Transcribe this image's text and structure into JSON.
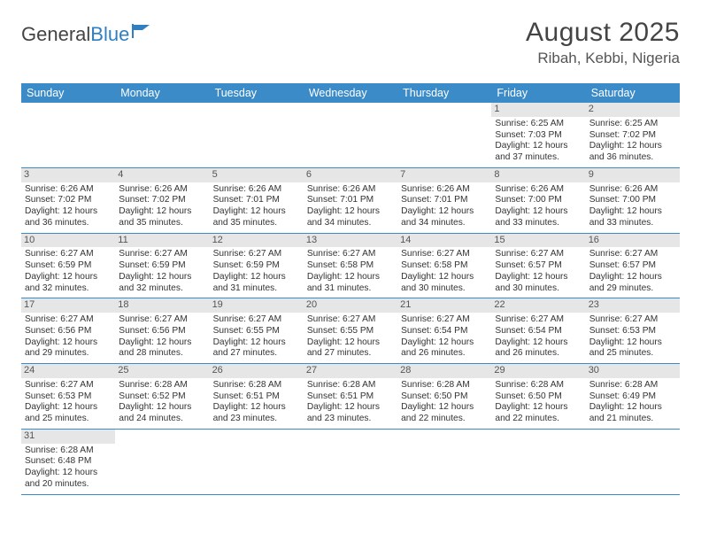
{
  "logo": {
    "text_a": "General",
    "text_b": "Blue"
  },
  "title": "August 2025",
  "location": "Ribah, Kebbi, Nigeria",
  "colors": {
    "header_bg": "#3b8bc9",
    "header_fg": "#ffffff",
    "daynum_bg": "#e6e6e6",
    "rule": "#3b8bc9",
    "text": "#333333",
    "logo_gray": "#444444",
    "logo_blue": "#2f7fc1"
  },
  "weekdays": [
    "Sunday",
    "Monday",
    "Tuesday",
    "Wednesday",
    "Thursday",
    "Friday",
    "Saturday"
  ],
  "weeks": [
    [
      null,
      null,
      null,
      null,
      null,
      {
        "n": "1",
        "sr": "6:25 AM",
        "ss": "7:03 PM",
        "dl": "12 hours and 37 minutes."
      },
      {
        "n": "2",
        "sr": "6:25 AM",
        "ss": "7:02 PM",
        "dl": "12 hours and 36 minutes."
      }
    ],
    [
      {
        "n": "3",
        "sr": "6:26 AM",
        "ss": "7:02 PM",
        "dl": "12 hours and 36 minutes."
      },
      {
        "n": "4",
        "sr": "6:26 AM",
        "ss": "7:02 PM",
        "dl": "12 hours and 35 minutes."
      },
      {
        "n": "5",
        "sr": "6:26 AM",
        "ss": "7:01 PM",
        "dl": "12 hours and 35 minutes."
      },
      {
        "n": "6",
        "sr": "6:26 AM",
        "ss": "7:01 PM",
        "dl": "12 hours and 34 minutes."
      },
      {
        "n": "7",
        "sr": "6:26 AM",
        "ss": "7:01 PM",
        "dl": "12 hours and 34 minutes."
      },
      {
        "n": "8",
        "sr": "6:26 AM",
        "ss": "7:00 PM",
        "dl": "12 hours and 33 minutes."
      },
      {
        "n": "9",
        "sr": "6:26 AM",
        "ss": "7:00 PM",
        "dl": "12 hours and 33 minutes."
      }
    ],
    [
      {
        "n": "10",
        "sr": "6:27 AM",
        "ss": "6:59 PM",
        "dl": "12 hours and 32 minutes."
      },
      {
        "n": "11",
        "sr": "6:27 AM",
        "ss": "6:59 PM",
        "dl": "12 hours and 32 minutes."
      },
      {
        "n": "12",
        "sr": "6:27 AM",
        "ss": "6:59 PM",
        "dl": "12 hours and 31 minutes."
      },
      {
        "n": "13",
        "sr": "6:27 AM",
        "ss": "6:58 PM",
        "dl": "12 hours and 31 minutes."
      },
      {
        "n": "14",
        "sr": "6:27 AM",
        "ss": "6:58 PM",
        "dl": "12 hours and 30 minutes."
      },
      {
        "n": "15",
        "sr": "6:27 AM",
        "ss": "6:57 PM",
        "dl": "12 hours and 30 minutes."
      },
      {
        "n": "16",
        "sr": "6:27 AM",
        "ss": "6:57 PM",
        "dl": "12 hours and 29 minutes."
      }
    ],
    [
      {
        "n": "17",
        "sr": "6:27 AM",
        "ss": "6:56 PM",
        "dl": "12 hours and 29 minutes."
      },
      {
        "n": "18",
        "sr": "6:27 AM",
        "ss": "6:56 PM",
        "dl": "12 hours and 28 minutes."
      },
      {
        "n": "19",
        "sr": "6:27 AM",
        "ss": "6:55 PM",
        "dl": "12 hours and 27 minutes."
      },
      {
        "n": "20",
        "sr": "6:27 AM",
        "ss": "6:55 PM",
        "dl": "12 hours and 27 minutes."
      },
      {
        "n": "21",
        "sr": "6:27 AM",
        "ss": "6:54 PM",
        "dl": "12 hours and 26 minutes."
      },
      {
        "n": "22",
        "sr": "6:27 AM",
        "ss": "6:54 PM",
        "dl": "12 hours and 26 minutes."
      },
      {
        "n": "23",
        "sr": "6:27 AM",
        "ss": "6:53 PM",
        "dl": "12 hours and 25 minutes."
      }
    ],
    [
      {
        "n": "24",
        "sr": "6:27 AM",
        "ss": "6:53 PM",
        "dl": "12 hours and 25 minutes."
      },
      {
        "n": "25",
        "sr": "6:28 AM",
        "ss": "6:52 PM",
        "dl": "12 hours and 24 minutes."
      },
      {
        "n": "26",
        "sr": "6:28 AM",
        "ss": "6:51 PM",
        "dl": "12 hours and 23 minutes."
      },
      {
        "n": "27",
        "sr": "6:28 AM",
        "ss": "6:51 PM",
        "dl": "12 hours and 23 minutes."
      },
      {
        "n": "28",
        "sr": "6:28 AM",
        "ss": "6:50 PM",
        "dl": "12 hours and 22 minutes."
      },
      {
        "n": "29",
        "sr": "6:28 AM",
        "ss": "6:50 PM",
        "dl": "12 hours and 22 minutes."
      },
      {
        "n": "30",
        "sr": "6:28 AM",
        "ss": "6:49 PM",
        "dl": "12 hours and 21 minutes."
      }
    ],
    [
      {
        "n": "31",
        "sr": "6:28 AM",
        "ss": "6:48 PM",
        "dl": "12 hours and 20 minutes."
      },
      null,
      null,
      null,
      null,
      null,
      null
    ]
  ],
  "labels": {
    "sunrise": "Sunrise:",
    "sunset": "Sunset:",
    "daylight": "Daylight:"
  }
}
